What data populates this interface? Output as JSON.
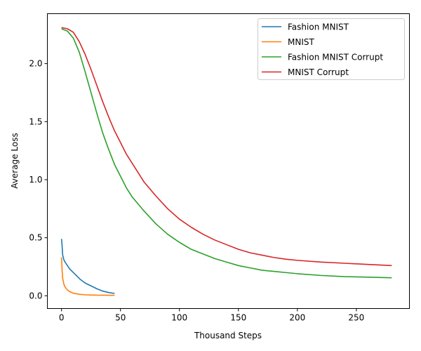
{
  "chart_data": {
    "type": "line",
    "title": "",
    "xlabel": "Thousand Steps",
    "ylabel": "Average Loss",
    "xlim": [
      -12,
      295
    ],
    "ylim": [
      -0.11,
      2.43
    ],
    "xticks": [
      0,
      50,
      100,
      150,
      200,
      250
    ],
    "yticks": [
      0.0,
      0.5,
      1.0,
      1.5,
      2.0
    ],
    "grid": false,
    "legend_position": "top-right",
    "series": [
      {
        "name": "Fashion MNIST",
        "color": "#1f77b4",
        "points": [
          [
            0,
            0.49
          ],
          [
            0.5,
            0.43
          ],
          [
            1,
            0.35
          ],
          [
            2,
            0.31
          ],
          [
            3,
            0.29
          ],
          [
            5,
            0.26
          ],
          [
            7,
            0.23
          ],
          [
            10,
            0.2
          ],
          [
            13,
            0.17
          ],
          [
            16,
            0.14
          ],
          [
            20,
            0.11
          ],
          [
            25,
            0.085
          ],
          [
            30,
            0.06
          ],
          [
            35,
            0.04
          ],
          [
            40,
            0.028
          ],
          [
            45,
            0.02
          ]
        ]
      },
      {
        "name": "MNIST",
        "color": "#ff7f0e",
        "points": [
          [
            0,
            0.33
          ],
          [
            0.5,
            0.22
          ],
          [
            1,
            0.15
          ],
          [
            2,
            0.1
          ],
          [
            3,
            0.075
          ],
          [
            5,
            0.05
          ],
          [
            7,
            0.035
          ],
          [
            10,
            0.022
          ],
          [
            15,
            0.013
          ],
          [
            20,
            0.008
          ],
          [
            30,
            0.005
          ],
          [
            45,
            0.004
          ]
        ]
      },
      {
        "name": "Fashion MNIST Corrupt",
        "color": "#2ca02c",
        "points": [
          [
            0,
            2.3
          ],
          [
            5,
            2.28
          ],
          [
            10,
            2.22
          ],
          [
            15,
            2.1
          ],
          [
            20,
            1.93
          ],
          [
            25,
            1.75
          ],
          [
            30,
            1.57
          ],
          [
            35,
            1.4
          ],
          [
            40,
            1.26
          ],
          [
            45,
            1.13
          ],
          [
            50,
            1.03
          ],
          [
            55,
            0.93
          ],
          [
            60,
            0.85
          ],
          [
            70,
            0.73
          ],
          [
            80,
            0.62
          ],
          [
            90,
            0.53
          ],
          [
            100,
            0.46
          ],
          [
            110,
            0.4
          ],
          [
            120,
            0.36
          ],
          [
            130,
            0.32
          ],
          [
            140,
            0.29
          ],
          [
            150,
            0.26
          ],
          [
            160,
            0.24
          ],
          [
            170,
            0.22
          ],
          [
            180,
            0.21
          ],
          [
            190,
            0.2
          ],
          [
            200,
            0.19
          ],
          [
            220,
            0.175
          ],
          [
            240,
            0.165
          ],
          [
            260,
            0.16
          ],
          [
            280,
            0.155
          ]
        ]
      },
      {
        "name": "MNIST Corrupt",
        "color": "#d62728",
        "points": [
          [
            0,
            2.31
          ],
          [
            5,
            2.3
          ],
          [
            10,
            2.27
          ],
          [
            15,
            2.19
          ],
          [
            20,
            2.08
          ],
          [
            25,
            1.95
          ],
          [
            30,
            1.81
          ],
          [
            35,
            1.67
          ],
          [
            40,
            1.54
          ],
          [
            45,
            1.42
          ],
          [
            50,
            1.32
          ],
          [
            55,
            1.22
          ],
          [
            60,
            1.14
          ],
          [
            70,
            0.98
          ],
          [
            80,
            0.86
          ],
          [
            90,
            0.75
          ],
          [
            100,
            0.66
          ],
          [
            110,
            0.59
          ],
          [
            120,
            0.53
          ],
          [
            130,
            0.48
          ],
          [
            140,
            0.44
          ],
          [
            150,
            0.4
          ],
          [
            160,
            0.37
          ],
          [
            170,
            0.35
          ],
          [
            180,
            0.33
          ],
          [
            190,
            0.315
          ],
          [
            200,
            0.305
          ],
          [
            220,
            0.29
          ],
          [
            240,
            0.28
          ],
          [
            260,
            0.27
          ],
          [
            280,
            0.26
          ]
        ]
      }
    ]
  }
}
